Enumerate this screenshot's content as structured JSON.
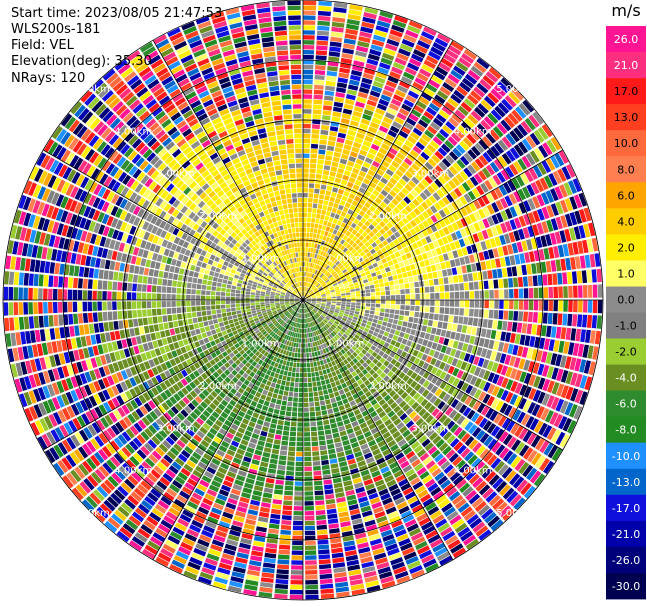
{
  "info": {
    "start_time": "Start time: 2023/08/05 21:47:53",
    "instrument": "WLS200s-181",
    "field": "Field: VEL",
    "elevation": "Elevation(deg): 35.30",
    "nrays": "NRays: 120"
  },
  "chart_data": {
    "type": "heatmap",
    "projection": "polar-ppi",
    "field": "VEL",
    "units": "m/s",
    "nrays": 120,
    "range_rings_km": [
      1.0,
      2.0,
      3.0,
      4.0,
      5.0
    ],
    "range_labels": [
      "1.00km",
      "2.00km",
      "3.00km",
      "4.00km",
      "5.00km"
    ],
    "colorbar": {
      "unit": "m/s",
      "ticks": [
        "26.0",
        "21.0",
        "17.0",
        "13.0",
        "10.0",
        "8.0",
        "6.0",
        "4.0",
        "2.0",
        "1.0",
        "0.0",
        "-1.0",
        "-2.0",
        "-4.0",
        "-6.0",
        "-8.0",
        "-10.0",
        "-13.0",
        "-17.0",
        "-21.0",
        "-26.0",
        "-30.0"
      ],
      "colors": [
        "#ff1493",
        "#ff2f80",
        "#ff1a1a",
        "#ff3f1f",
        "#ff6a3d",
        "#ff7f50",
        "#ffa500",
        "#ffcc00",
        "#ffee00",
        "#ffff66",
        "#8c8c8c",
        "#808080",
        "#9acd32",
        "#6b8e23",
        "#2e8b2e",
        "#228b22",
        "#1e90ff",
        "#0066cc",
        "#1010dd",
        "#0000aa",
        "#00007a",
        "#000050"
      ]
    }
  }
}
